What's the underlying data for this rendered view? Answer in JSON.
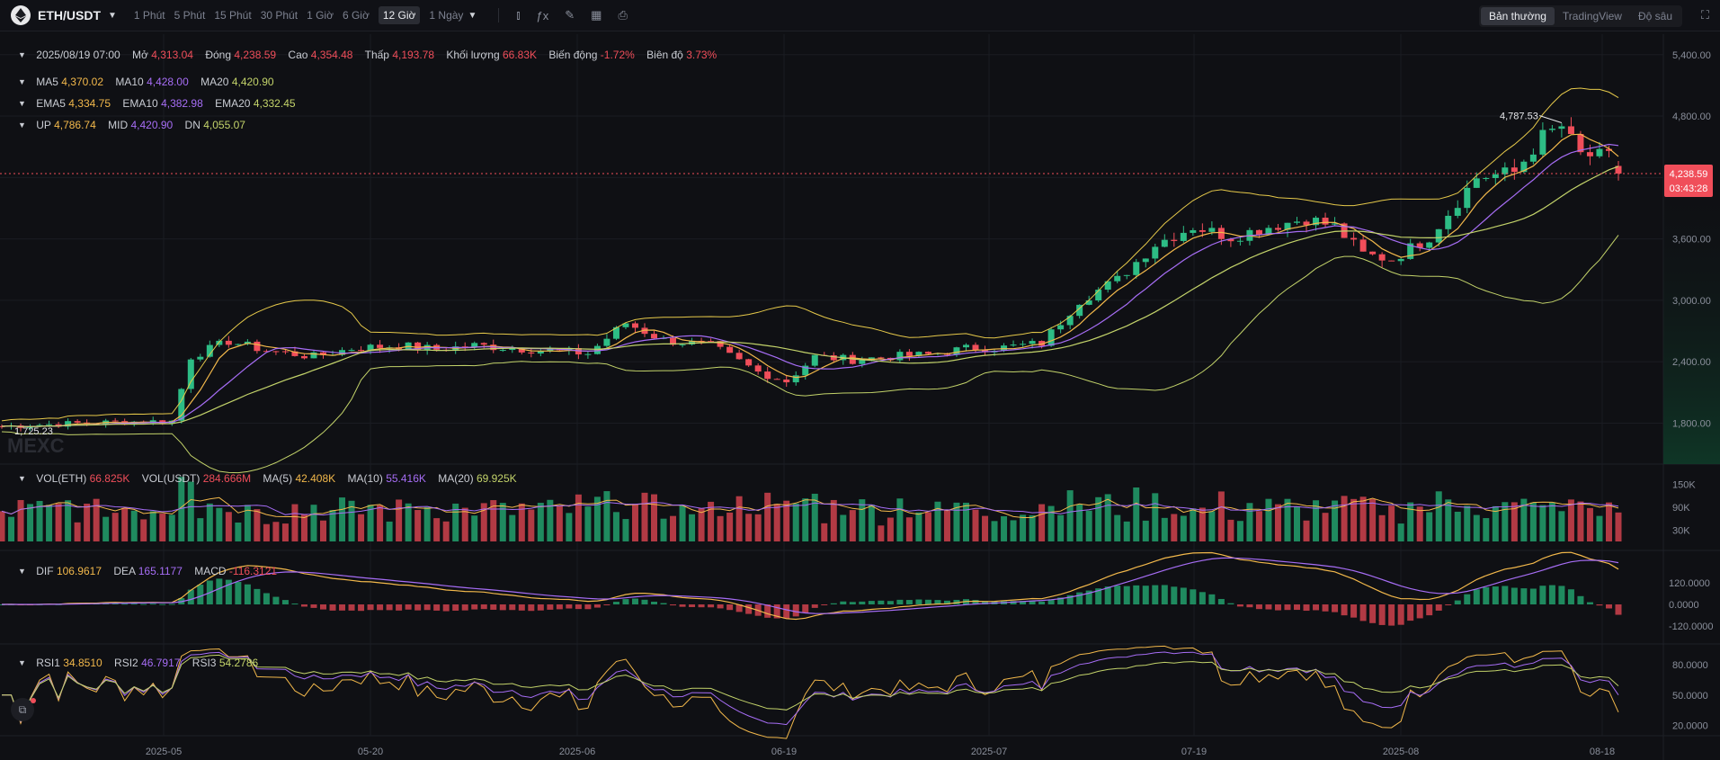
{
  "header": {
    "pair": "ETH/USDT",
    "intervals": [
      "1 Phút",
      "5 Phút",
      "15 Phút",
      "30 Phút",
      "1 Giờ",
      "6 Giờ",
      "12 Giờ",
      "1 Ngày"
    ],
    "active_interval": "12 Giờ",
    "view_modes": [
      "Bản thường",
      "TradingView",
      "Độ sâu"
    ],
    "active_mode": "Bản thường"
  },
  "ohlc": {
    "date": "2025/08/19 07:00",
    "open_label": "Mở",
    "open": "4,313.04",
    "close_label": "Đóng",
    "close": "4,238.59",
    "high_label": "Cao",
    "high": "4,354.48",
    "low_label": "Thấp",
    "low": "4,193.78",
    "vol_label": "Khối lượng",
    "vol": "66.83K",
    "change_label": "Biến động",
    "change": "-1.72%",
    "amp_label": "Biên độ",
    "amp": "3.73%"
  },
  "ma": {
    "ma5_label": "MA5",
    "ma5": "4,370.02",
    "ma10_label": "MA10",
    "ma10": "4,428.00",
    "ma20_label": "MA20",
    "ma20": "4,420.90"
  },
  "ema": {
    "ema5_label": "EMA5",
    "ema5": "4,334.75",
    "ema10_label": "EMA10",
    "ema10": "4,382.98",
    "ema20_label": "EMA20",
    "ema20": "4,332.45"
  },
  "boll": {
    "up_label": "UP",
    "up": "4,786.74",
    "mid_label": "MID",
    "mid": "4,420.90",
    "dn_label": "DN",
    "dn": "4,055.07"
  },
  "volume": {
    "eth_label": "VOL(ETH)",
    "eth": "66.825K",
    "usdt_label": "VOL(USDT)",
    "usdt": "284.666M",
    "ma5_label": "MA(5)",
    "ma5": "42.408K",
    "ma10_label": "MA(10)",
    "ma10": "55.416K",
    "ma20_label": "MA(20)",
    "ma20": "69.925K"
  },
  "macd": {
    "dif_label": "DIF",
    "dif": "106.9617",
    "dea_label": "DEA",
    "dea": "165.1177",
    "macd_label": "MACD",
    "macd": "-116.3121"
  },
  "rsi": {
    "rsi1_label": "RSI1",
    "rsi1": "34.8510",
    "rsi2_label": "RSI2",
    "rsi2": "46.7917",
    "rsi3_label": "RSI3",
    "rsi3": "54.2786"
  },
  "price_tag": {
    "price": "4,238.59",
    "countdown": "03:43:28"
  },
  "watermark": "MEXC",
  "colors": {
    "up": "#2dbd85",
    "down": "#f04e5a",
    "ma5": "#f2b84b",
    "ma10": "#a66df5",
    "ma20": "#c3d36a",
    "boll": "#e6c94a"
  },
  "chart_data": [
    {
      "type": "candlestick",
      "title": "ETH/USDT",
      "interval": "12 Giờ",
      "x_tick_labels": [
        "2025-05",
        "05-20",
        "2025-06",
        "06-19",
        "2025-07",
        "07-19",
        "2025-08",
        "08-18"
      ],
      "ylim": [
        1400,
        5600
      ],
      "y_tick_labels": [
        "5,400.00",
        "4,800.00",
        "4,200.00",
        "3,600.00",
        "3,000.00",
        "2,400.00",
        "1,800.00"
      ],
      "annotations": {
        "high_marker": "4,787.53",
        "low_marker": "1,725.23",
        "last_price": "4,238.59"
      },
      "price_path": [
        [
          0,
          1770
        ],
        [
          8,
          1800
        ],
        [
          14,
          1815
        ],
        [
          18,
          1820
        ],
        [
          20,
          2450
        ],
        [
          24,
          2600
        ],
        [
          28,
          2510
        ],
        [
          33,
          2450
        ],
        [
          37,
          2530
        ],
        [
          42,
          2560
        ],
        [
          46,
          2520
        ],
        [
          50,
          2560
        ],
        [
          56,
          2520
        ],
        [
          62,
          2480
        ],
        [
          66,
          2780
        ],
        [
          70,
          2610
        ],
        [
          75,
          2560
        ],
        [
          80,
          2300
        ],
        [
          83,
          2210
        ],
        [
          86,
          2450
        ],
        [
          90,
          2420
        ],
        [
          94,
          2450
        ],
        [
          98,
          2470
        ],
        [
          102,
          2530
        ],
        [
          106,
          2540
        ],
        [
          110,
          2580
        ],
        [
          114,
          3000
        ],
        [
          118,
          3200
        ],
        [
          122,
          3550
        ],
        [
          126,
          3720
        ],
        [
          130,
          3620
        ],
        [
          134,
          3720
        ],
        [
          138,
          3800
        ],
        [
          141,
          3720
        ],
        [
          144,
          3450
        ],
        [
          147,
          3400
        ],
        [
          151,
          3620
        ],
        [
          156,
          4200
        ],
        [
          160,
          4250
        ],
        [
          163,
          4600
        ],
        [
          165,
          4700
        ],
        [
          167,
          4420
        ],
        [
          170,
          4400
        ],
        [
          172,
          4238
        ]
      ],
      "series": [
        {
          "name": "MA5",
          "last": "4,370.02"
        },
        {
          "name": "MA10",
          "last": "4,428.00"
        },
        {
          "name": "MA20",
          "last": "4,420.90"
        },
        {
          "name": "UP",
          "last": "4,786.74"
        },
        {
          "name": "DN",
          "last": "4,055.07"
        }
      ]
    },
    {
      "type": "bar",
      "title": "VOL(ETH)",
      "y_tick_labels": [
        "150K",
        "90K",
        "30K"
      ],
      "ylim": [
        0,
        180000
      ]
    },
    {
      "type": "bar",
      "title": "MACD",
      "y_tick_labels": [
        "120.0000",
        "0.0000",
        "-120.0000"
      ],
      "ylim": [
        -200,
        260
      ]
    },
    {
      "type": "line",
      "title": "RSI",
      "y_tick_labels": [
        "80.0000",
        "50.0000",
        "20.0000"
      ],
      "ylim": [
        10,
        95
      ]
    }
  ]
}
